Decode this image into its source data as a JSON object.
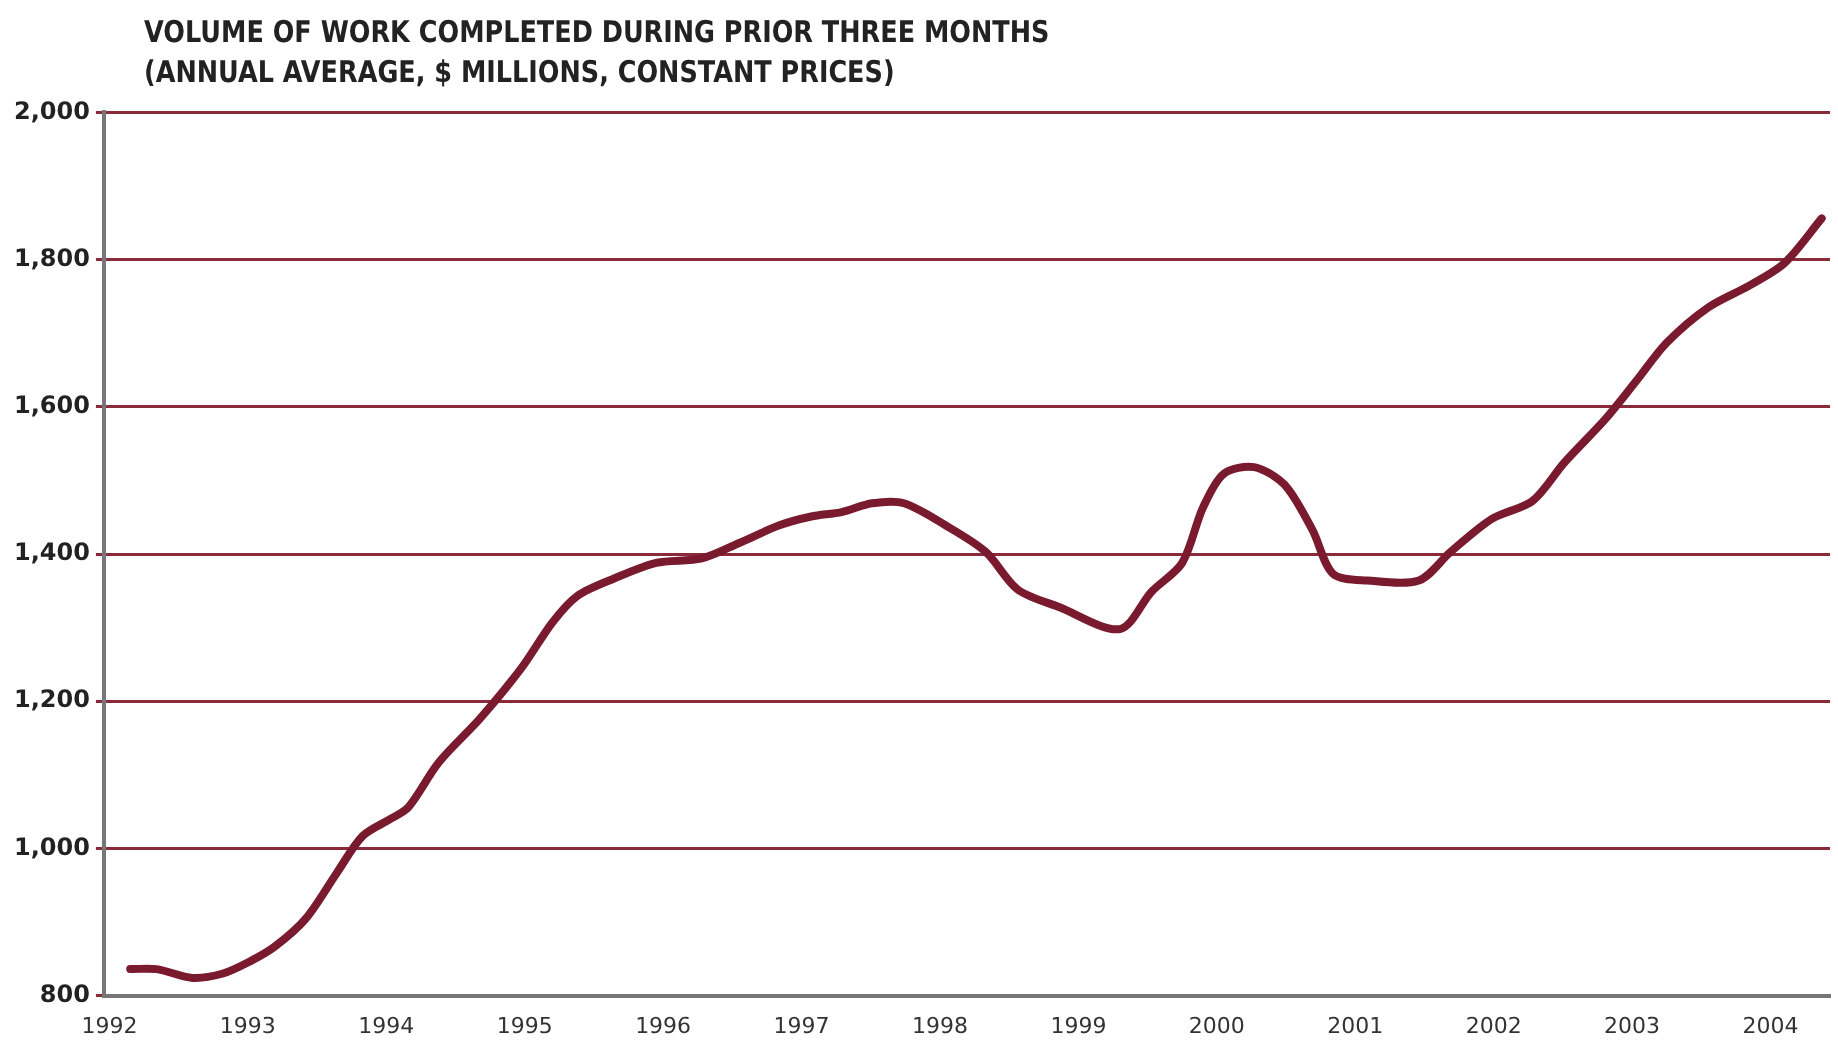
{
  "chart_data": {
    "type": "line",
    "title": "VOLUME OF WORK COMPLETED DURING PRIOR THREE MONTHS",
    "subtitle": "(ANNUAL AVERAGE, $ MILLIONS, CONSTANT PRICES)",
    "x": [
      1992.15,
      1992.34,
      1992.6,
      1992.82,
      1993.0,
      1993.19,
      1993.42,
      1993.64,
      1993.83,
      1994.04,
      1994.16,
      1994.38,
      1994.68,
      1994.98,
      1995.2,
      1995.38,
      1995.65,
      1995.95,
      1996.28,
      1996.55,
      1996.84,
      1997.07,
      1997.29,
      1997.51,
      1997.74,
      1998.04,
      1998.33,
      1998.56,
      1998.86,
      1999.3,
      1999.53,
      1999.75,
      1999.9,
      2000.05,
      2000.27,
      2000.49,
      2000.69,
      2000.84,
      2001.09,
      2001.46,
      2001.69,
      2001.99,
      2002.28,
      2002.51,
      2002.81,
      2003.03,
      2003.25,
      2003.55,
      2003.85,
      2004.1,
      2004.37
    ],
    "series": [
      {
        "color": "#7a1a2e",
        "values": [
          836,
          836,
          824,
          830,
          845,
          866,
          905,
          966,
          1017,
          1041,
          1056,
          1117,
          1177,
          1246,
          1307,
          1343,
          1367,
          1388,
          1394,
          1415,
          1439,
          1451,
          1457,
          1469,
          1469,
          1439,
          1403,
          1352,
          1328,
          1298,
          1349,
          1388,
          1463,
          1509,
          1518,
          1494,
          1433,
          1373,
          1364,
          1364,
          1403,
          1448,
          1472,
          1524,
          1584,
          1635,
          1687,
          1735,
          1765,
          1795,
          1856
        ]
      }
    ],
    "xlim": [
      1991.96,
      2004.43
    ],
    "xticks": [
      1992,
      1993,
      1994,
      1995,
      1996,
      1997,
      1998,
      1999,
      2000,
      2001,
      2002,
      2003,
      2004
    ],
    "ylim": [
      800,
      2000
    ],
    "yticks": [
      {
        "value": 800,
        "label": "800"
      },
      {
        "value": 1000,
        "label": "1,000"
      },
      {
        "value": 1200,
        "label": "1,200"
      },
      {
        "value": 1400,
        "label": "1,400"
      },
      {
        "value": 1600,
        "label": "1,600"
      },
      {
        "value": 1800,
        "label": "1,800"
      },
      {
        "value": 2000,
        "label": "2,000"
      }
    ],
    "grid": "y",
    "legend": false,
    "marker": "none",
    "line_style": "solid"
  }
}
